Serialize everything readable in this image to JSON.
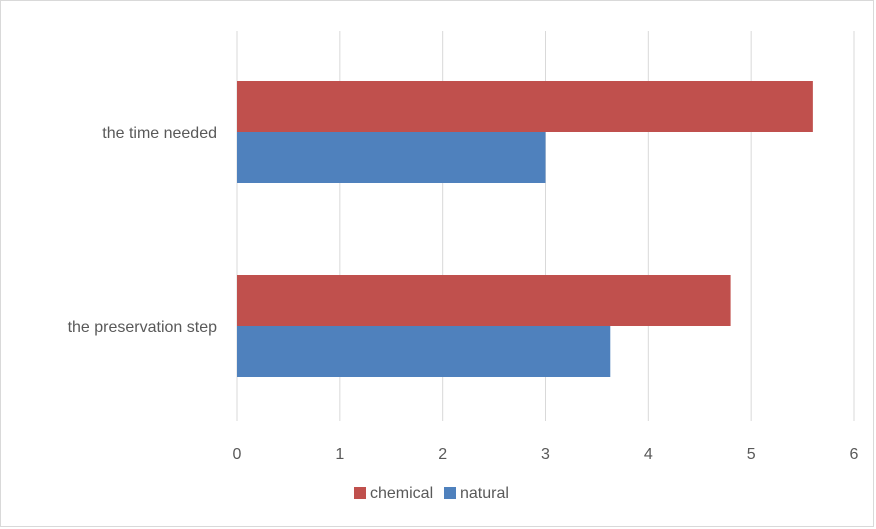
{
  "chart_data": {
    "type": "bar",
    "orientation": "horizontal",
    "categories": [
      "the time needed",
      "the preservation step"
    ],
    "series": [
      {
        "name": "chemical",
        "values": [
          5.6,
          4.8
        ],
        "color": "#c0504d"
      },
      {
        "name": "natural",
        "values": [
          3.0,
          3.63
        ],
        "color": "#4f81bd"
      }
    ],
    "xlim": [
      0,
      6
    ],
    "x_ticks": [
      "0",
      "1",
      "2",
      "3",
      "4",
      "5",
      "6"
    ],
    "grid": "vertical",
    "legend_position": "bottom",
    "gridline_color": "#d9d9d9"
  }
}
